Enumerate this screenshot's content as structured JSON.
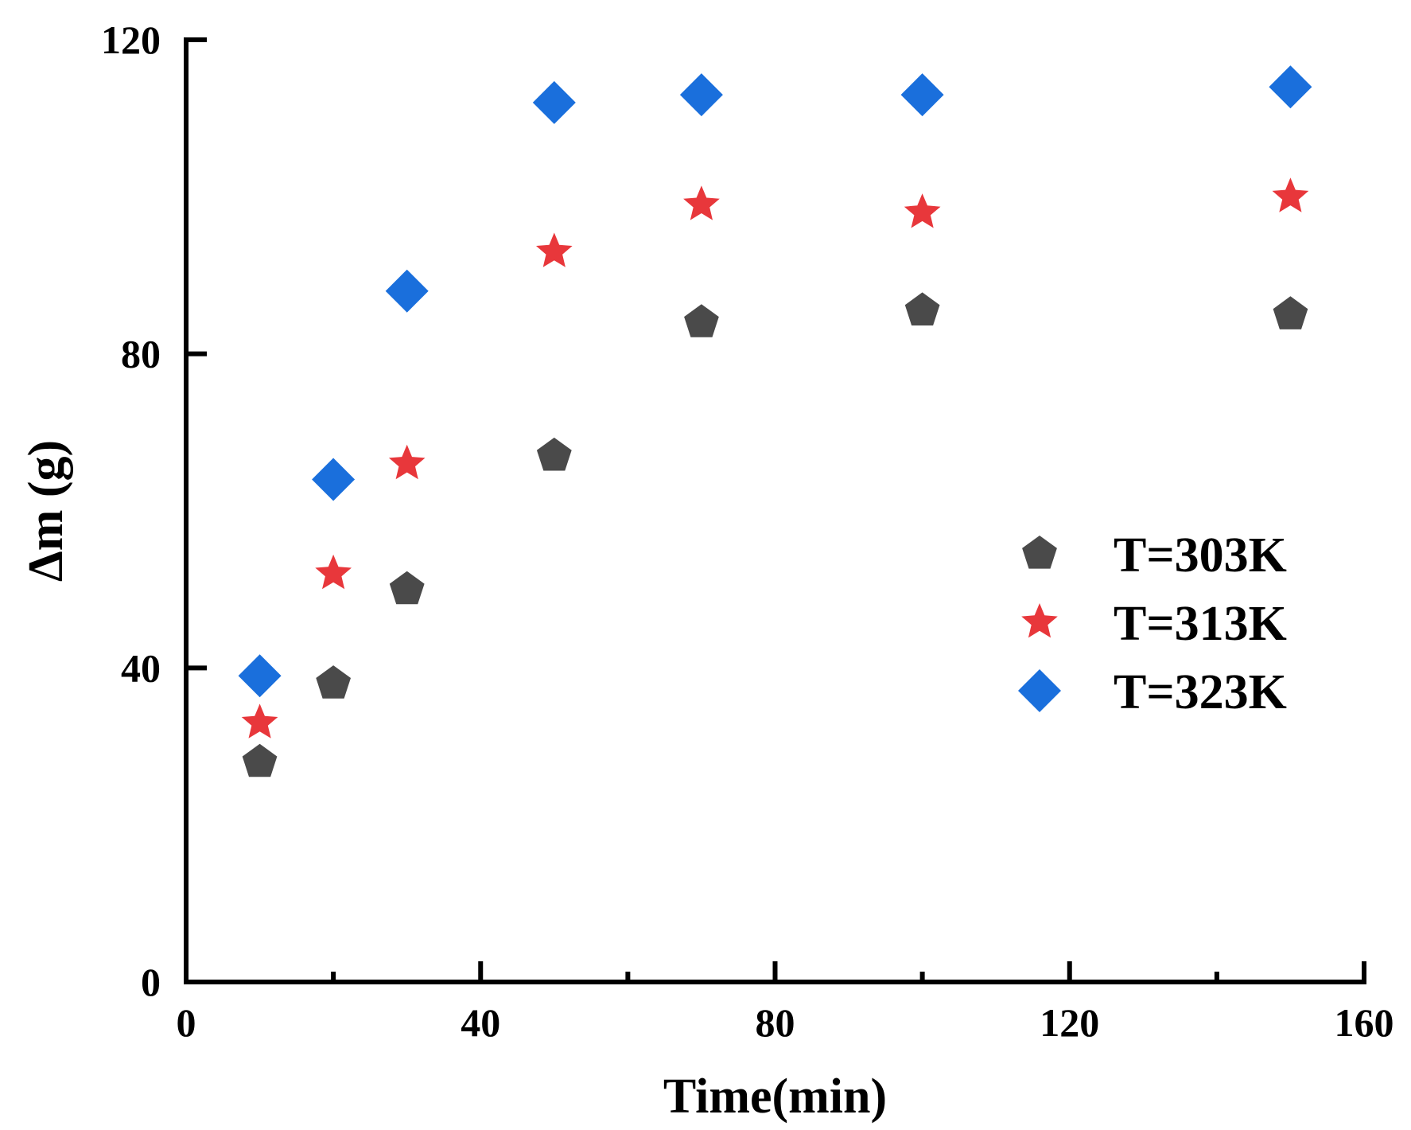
{
  "chart_data": {
    "type": "scatter",
    "title": "",
    "xlabel": "Time(min)",
    "ylabel": "Δm (g)",
    "xlim": [
      0,
      160
    ],
    "ylim": [
      0,
      120
    ],
    "xticks": [
      0,
      40,
      80,
      120,
      160
    ],
    "xticks_minor": [
      20,
      60,
      100,
      140
    ],
    "yticks": [
      0,
      40,
      80,
      120
    ],
    "grid": false,
    "legend_position": "center-right",
    "series": [
      {
        "name": "T=303K",
        "marker": "pentagon",
        "color": "#4a4a4a",
        "x": [
          10,
          20,
          30,
          50,
          70,
          100,
          150
        ],
        "y": [
          28,
          38,
          50,
          67,
          84,
          85.5,
          85
        ]
      },
      {
        "name": "T=313K",
        "marker": "star",
        "color": "#e8373b",
        "x": [
          10,
          20,
          30,
          50,
          70,
          100,
          150
        ],
        "y": [
          33,
          52,
          66,
          93,
          99,
          98,
          100
        ]
      },
      {
        "name": "T=323K",
        "marker": "diamond",
        "color": "#1a6fdc",
        "x": [
          10,
          20,
          30,
          50,
          70,
          100,
          150
        ],
        "y": [
          39,
          64,
          88,
          112,
          113,
          113,
          114
        ]
      }
    ]
  }
}
